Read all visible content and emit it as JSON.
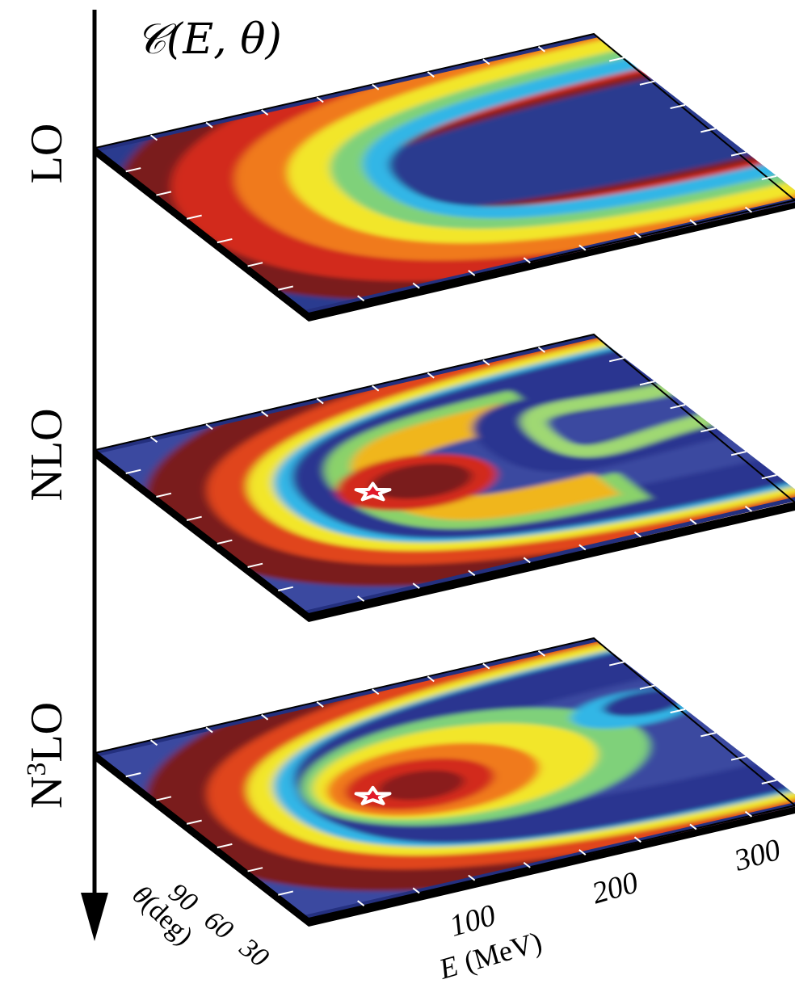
{
  "chart_data": [
    {
      "type": "heatmap",
      "title": "𝒞(E, θ)",
      "x_axis": {
        "label_var": "E",
        "label_unit": "(MeV)",
        "range": [
          0,
          350
        ],
        "ticks": [
          100,
          200,
          300
        ]
      },
      "y_axis": {
        "label_var": "θ",
        "label_unit": "(deg)",
        "range": [
          0,
          180
        ],
        "ticks": [
          30,
          60,
          90
        ]
      },
      "colormap": "jet",
      "panels": [
        {
          "label": "LO",
          "label_sup": "",
          "label_rest": "",
          "marker": null
        },
        {
          "label": "NLO",
          "label_sup": "",
          "label_rest": "",
          "marker": {
            "symbol": "star",
            "E": 120,
            "theta": 90
          }
        },
        {
          "label": "N",
          "label_sup": "3",
          "label_rest": "LO",
          "marker": {
            "symbol": "star",
            "E": 120,
            "theta": 90
          }
        }
      ],
      "legend": "none",
      "grid": false
    }
  ]
}
